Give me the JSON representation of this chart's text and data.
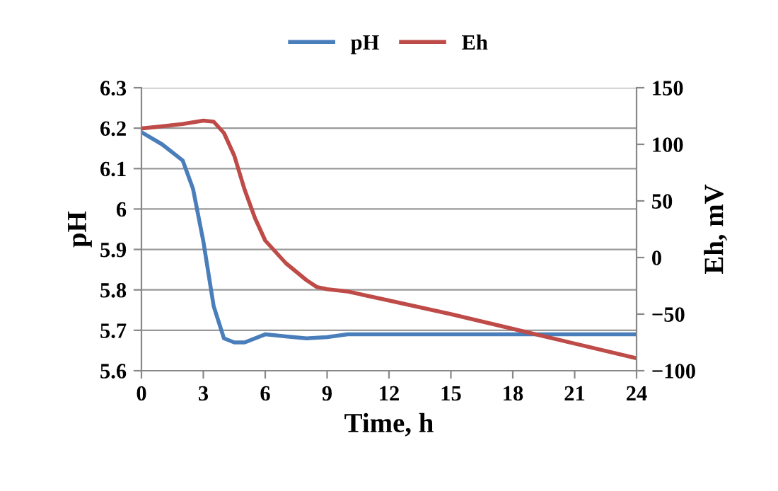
{
  "chart_data": {
    "type": "line",
    "xlabel": "Time, h",
    "ylabel": "pH",
    "y2label": "Eh, mV",
    "legend": "top",
    "grid": "y",
    "xlim": [
      0,
      24
    ],
    "xticks": [
      0,
      3,
      6,
      9,
      12,
      15,
      18,
      21,
      24
    ],
    "ylim": [
      5.6,
      6.3
    ],
    "yticks": [
      5.6,
      5.7,
      5.8,
      5.9,
      {
        "value": 6.0,
        "label": "6"
      },
      6.1,
      6.2,
      6.3
    ],
    "y2lim": [
      -100,
      150
    ],
    "y2ticks": [
      {
        "value": -100,
        "label": "−100"
      },
      {
        "value": -50,
        "label": "−50"
      },
      0,
      50,
      100,
      150
    ],
    "series": [
      {
        "name": "pH",
        "color": "#4a7ebb",
        "x": [
          0,
          1,
          2,
          2.5,
          3,
          3.5,
          4,
          4.5,
          5,
          6,
          7,
          8,
          9,
          10,
          12,
          15,
          18,
          21,
          24
        ],
        "values": [
          6.19,
          6.16,
          6.12,
          6.05,
          5.92,
          5.76,
          5.68,
          5.67,
          5.67,
          5.69,
          5.685,
          5.68,
          5.683,
          5.69,
          5.69,
          5.69,
          5.69,
          5.69,
          5.69
        ]
      },
      {
        "name": "Eh",
        "color": "#be4b48",
        "axis": "y2",
        "x": [
          0,
          1,
          2,
          3,
          3.5,
          4,
          4.5,
          5,
          5.5,
          6,
          7,
          8,
          8.5,
          9,
          10,
          12,
          15,
          18,
          21,
          24
        ],
        "values": [
          114,
          116,
          118,
          121,
          120,
          110,
          90,
          60,
          35,
          15,
          -5,
          -20,
          -26,
          -28,
          -30,
          -38,
          -50,
          -63,
          -76,
          -89
        ]
      }
    ]
  }
}
